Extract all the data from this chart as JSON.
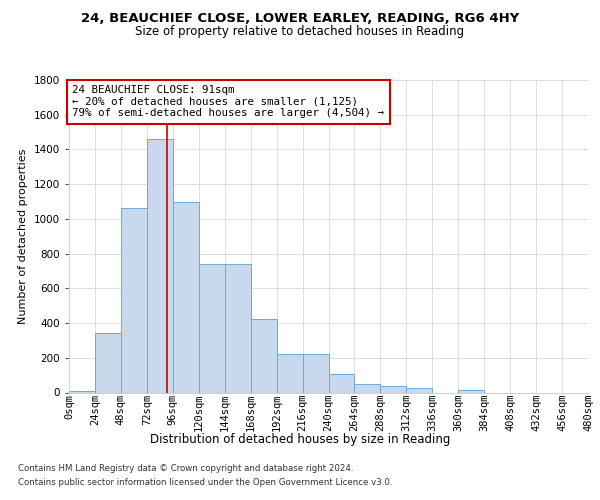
{
  "title1": "24, BEAUCHIEF CLOSE, LOWER EARLEY, READING, RG6 4HY",
  "title2": "Size of property relative to detached houses in Reading",
  "xlabel": "Distribution of detached houses by size in Reading",
  "ylabel": "Number of detached properties",
  "footnote1": "Contains HM Land Registry data © Crown copyright and database right 2024.",
  "footnote2": "Contains public sector information licensed under the Open Government Licence v3.0.",
  "annotation_line1": "24 BEAUCHIEF CLOSE: 91sqm",
  "annotation_line2": "← 20% of detached houses are smaller (1,125)",
  "annotation_line3": "79% of semi-detached houses are larger (4,504) →",
  "property_size": 91,
  "bin_edges": [
    0,
    24,
    48,
    72,
    96,
    120,
    144,
    168,
    192,
    216,
    240,
    264,
    288,
    312,
    336,
    360,
    384,
    408,
    432,
    456,
    480
  ],
  "bar_heights": [
    10,
    340,
    1060,
    1460,
    1100,
    740,
    740,
    425,
    220,
    220,
    105,
    50,
    40,
    25,
    0,
    15,
    0,
    0,
    0,
    0
  ],
  "bar_color": "#c8d9ed",
  "bar_edge_color": "#6fa8d4",
  "vline_color": "#cc0000",
  "vline_x": 91,
  "annotation_box_color": "#cc0000",
  "grid_color": "#d0d0d0",
  "ylim": [
    0,
    1800
  ],
  "yticks": [
    0,
    200,
    400,
    600,
    800,
    1000,
    1200,
    1400,
    1600,
    1800
  ],
  "background_color": "#ffffff",
  "title1_fontsize": 9.5,
  "title2_fontsize": 8.5,
  "ylabel_fontsize": 8.0,
  "xlabel_fontsize": 8.5,
  "tick_fontsize": 7.5,
  "footnote_fontsize": 6.2,
  "annot_fontsize": 7.8
}
